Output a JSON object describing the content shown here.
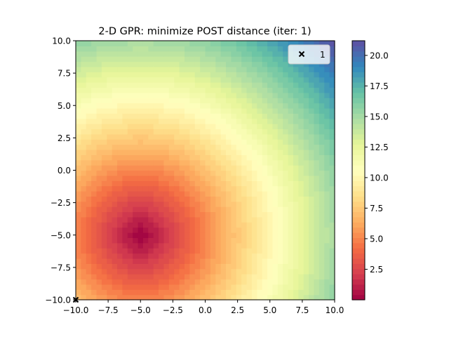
{
  "chart_data": {
    "type": "heatmap",
    "title": "2-D GPR: minimize POST distance (iter: 1)",
    "xlabel": "",
    "ylabel": "",
    "xlim": [
      -10,
      10
    ],
    "ylim": [
      -10,
      10
    ],
    "x_ticks": [
      "−10.0",
      "−7.5",
      "−5.0",
      "−2.5",
      "0.0",
      "2.5",
      "5.0",
      "7.5",
      "10.0"
    ],
    "x_tick_values": [
      -10,
      -7.5,
      -5,
      -2.5,
      0,
      2.5,
      5,
      7.5,
      10
    ],
    "y_ticks": [
      "−10.0",
      "−7.5",
      "−5.0",
      "−2.5",
      "0.0",
      "2.5",
      "5.0",
      "7.5",
      "10.0"
    ],
    "y_tick_values": [
      -10,
      -7.5,
      -5,
      -2.5,
      0,
      2.5,
      5,
      7.5,
      10
    ],
    "field": {
      "description": "Euclidean distance from point (-5, -5)",
      "center": [
        -5,
        -5
      ],
      "grid_steps": 50,
      "color_levels": 50
    },
    "colormap": "Spectral",
    "colorbar": {
      "range": [
        0,
        21.2
      ],
      "ticks": [
        "2.5",
        "5.0",
        "7.5",
        "10.0",
        "12.5",
        "15.0",
        "17.5",
        "20.0"
      ],
      "tick_values": [
        2.5,
        5,
        7.5,
        10,
        12.5,
        15,
        17.5,
        20
      ]
    },
    "samples": [
      {
        "x": -10,
        "y": -10,
        "marker": "x",
        "color": "#000000"
      }
    ],
    "legend": {
      "placement": "top-right",
      "entries": [
        {
          "marker": "x",
          "label": "1"
        }
      ]
    }
  }
}
